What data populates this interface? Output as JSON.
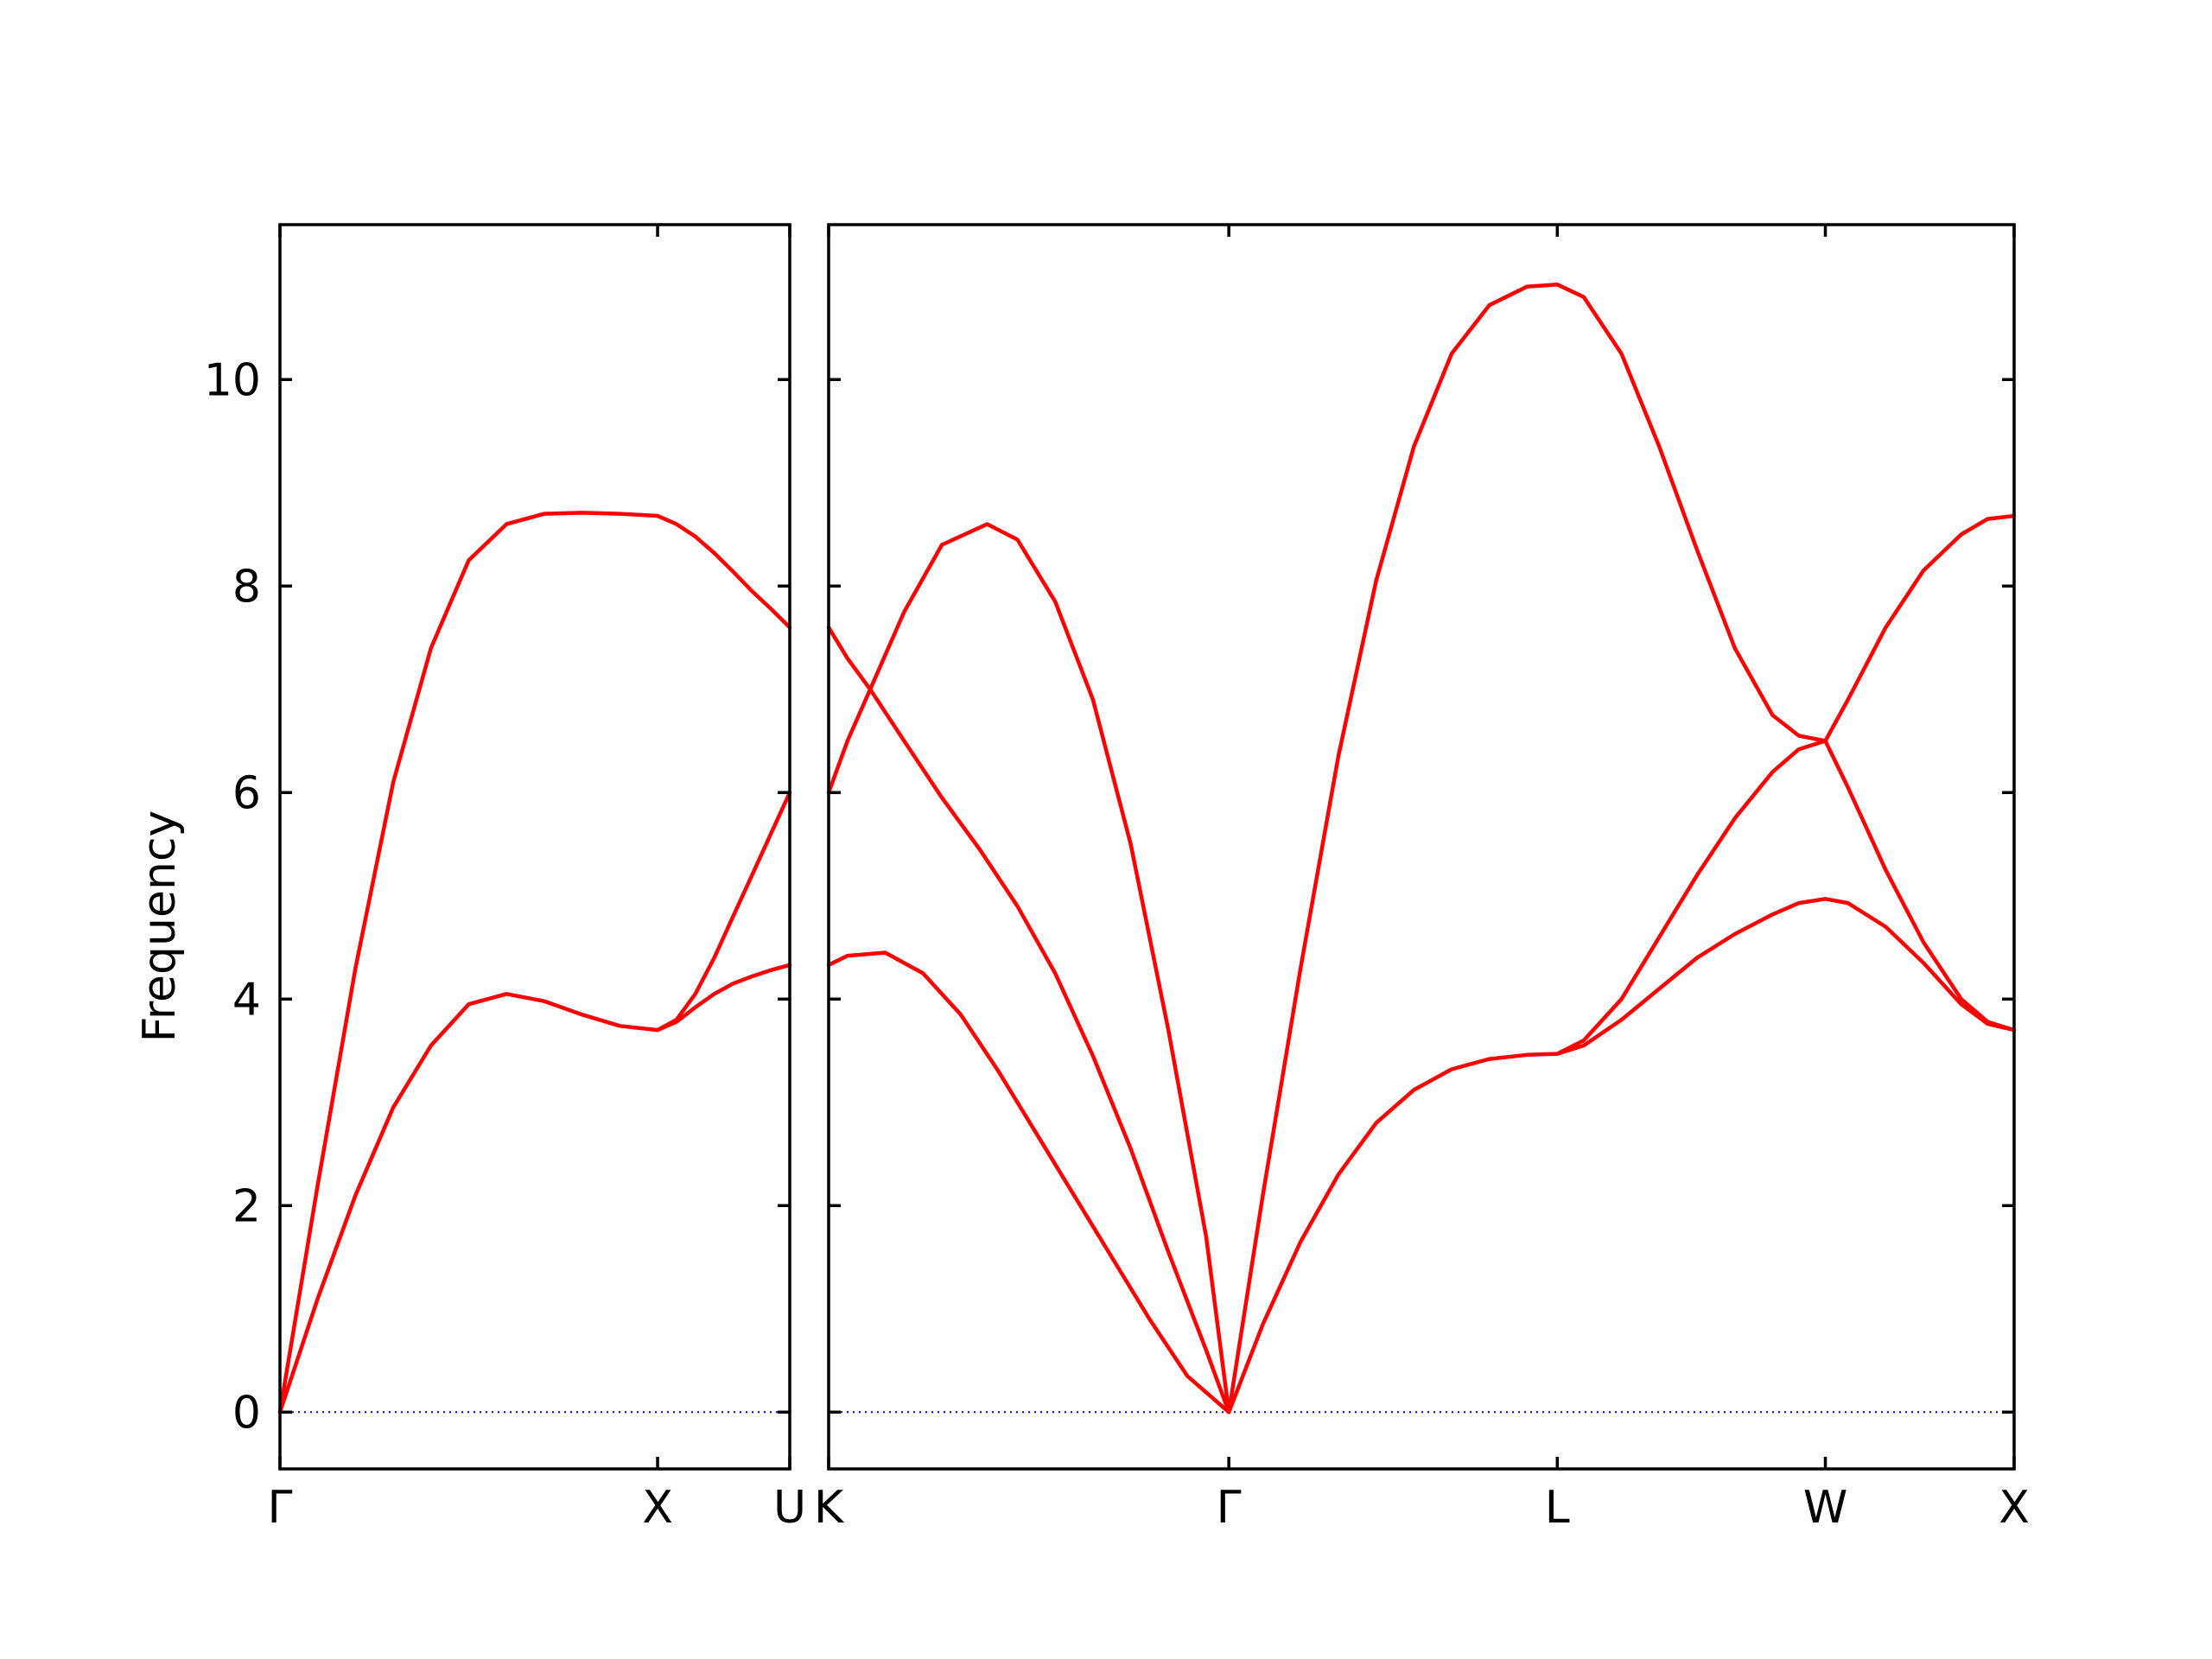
{
  "chart_data": {
    "type": "line",
    "title": "",
    "ylabel": "Frequency",
    "ylim": [
      -0.55,
      11.5
    ],
    "yticks": [
      0,
      2,
      4,
      6,
      8,
      10
    ],
    "ytick_labels": [
      "0",
      "2",
      "4",
      "6",
      "8",
      "10"
    ],
    "grid": false,
    "legend": "none",
    "colors": {
      "bands": "#ff0000",
      "zero_line": "#0000cc",
      "axes": "#000000"
    },
    "panels": [
      {
        "name": "gamma-x-u",
        "xlim": [
          0,
          1.35
        ],
        "xticks": [
          {
            "x": 0,
            "label": "Γ"
          },
          {
            "x": 1.0,
            "label": "X"
          },
          {
            "x": 1.35,
            "label": "U"
          }
        ],
        "series": [
          {
            "x": [
              0,
              0.1,
              0.2,
              0.3,
              0.4,
              0.5,
              0.6,
              0.7,
              0.8,
              0.9,
              1.0,
              1.05,
              1.1,
              1.15,
              1.2,
              1.25,
              1.3,
              1.35
            ],
            "y": [
              0,
              2.2,
              4.3,
              6.1,
              7.4,
              8.25,
              8.6,
              8.7,
              8.71,
              8.7,
              8.68,
              8.6,
              8.48,
              8.32,
              8.14,
              7.95,
              7.78,
              7.6
            ]
          },
          {
            "x": [
              0,
              0.1,
              0.2,
              0.3,
              0.4,
              0.5,
              0.6,
              0.7,
              0.8,
              0.9,
              1.0,
              1.05,
              1.1,
              1.15,
              1.2,
              1.25,
              1.3,
              1.35
            ],
            "y": [
              0,
              1.1,
              2.1,
              2.95,
              3.55,
              3.95,
              4.05,
              3.98,
              3.85,
              3.74,
              3.7,
              3.78,
              3.92,
              4.05,
              4.15,
              4.22,
              4.28,
              4.33
            ]
          },
          {
            "x": [
              1.0,
              1.05,
              1.1,
              1.15,
              1.2,
              1.25,
              1.3,
              1.35
            ],
            "y": [
              3.7,
              3.8,
              4.05,
              4.4,
              4.8,
              5.2,
              5.6,
              6.0
            ]
          }
        ]
      },
      {
        "name": "k-gamma-l-w-x",
        "xlim": [
          0,
          3.14
        ],
        "xticks": [
          {
            "x": 0,
            "label": "K"
          },
          {
            "x": 1.06,
            "label": "Γ"
          },
          {
            "x": 1.93,
            "label": "L"
          },
          {
            "x": 2.64,
            "label": "W"
          },
          {
            "x": 3.14,
            "label": "X"
          }
        ],
        "series": [
          {
            "x": [
              0,
              0.05,
              0.11,
              0.2,
              0.3,
              0.42,
              0.5,
              0.6,
              0.7,
              0.8,
              0.9,
              1.0,
              1.06
            ],
            "y": [
              6.0,
              6.5,
              7.0,
              7.75,
              8.4,
              8.6,
              8.45,
              7.85,
              6.9,
              5.5,
              3.7,
              1.7,
              0
            ]
          },
          {
            "x": [
              0,
              0.05,
              0.11,
              0.2,
              0.3,
              0.4,
              0.5,
              0.6,
              0.7,
              0.8,
              0.9,
              1.0,
              1.06
            ],
            "y": [
              7.6,
              7.3,
              7.0,
              6.5,
              5.95,
              5.45,
              4.9,
              4.25,
              3.45,
              2.55,
              1.55,
              0.6,
              0
            ]
          },
          {
            "x": [
              0,
              0.05,
              0.15,
              0.25,
              0.35,
              0.45,
              0.55,
              0.65,
              0.75,
              0.85,
              0.95,
              1.06
            ],
            "y": [
              4.33,
              4.42,
              4.45,
              4.25,
              3.85,
              3.3,
              2.7,
              2.1,
              1.5,
              0.9,
              0.35,
              0
            ]
          },
          {
            "x": [
              1.06,
              1.15,
              1.25,
              1.35,
              1.45,
              1.55,
              1.65,
              1.75,
              1.85,
              1.93,
              2.0,
              2.1,
              2.2,
              2.3,
              2.4,
              2.5,
              2.57,
              2.64,
              2.7,
              2.8,
              2.9,
              3.0,
              3.07,
              3.14
            ],
            "y": [
              0,
              2.1,
              4.3,
              6.35,
              8.05,
              9.35,
              10.25,
              10.72,
              10.9,
              10.92,
              10.8,
              10.25,
              9.35,
              8.35,
              7.4,
              6.75,
              6.55,
              6.5,
              6.9,
              7.6,
              8.15,
              8.5,
              8.65,
              8.68
            ]
          },
          {
            "x": [
              1.06,
              1.15,
              1.25,
              1.35,
              1.45,
              1.55,
              1.65,
              1.75,
              1.85,
              1.93,
              2.0,
              2.1,
              2.2,
              2.3,
              2.4,
              2.5,
              2.57,
              2.64
            ],
            "y": [
              0,
              0.85,
              1.65,
              2.3,
              2.8,
              3.12,
              3.32,
              3.42,
              3.46,
              3.47,
              3.6,
              4.0,
              4.6,
              5.2,
              5.75,
              6.2,
              6.42,
              6.5
            ]
          },
          {
            "x": [
              1.93,
              2.0,
              2.1,
              2.2,
              2.3,
              2.4,
              2.5,
              2.57,
              2.64,
              2.7,
              2.8,
              2.9,
              3.0,
              3.07,
              3.14
            ],
            "y": [
              3.47,
              3.55,
              3.8,
              4.1,
              4.4,
              4.63,
              4.82,
              4.93,
              4.97,
              4.93,
              4.7,
              4.35,
              3.95,
              3.76,
              3.7
            ]
          },
          {
            "x": [
              2.64,
              2.7,
              2.8,
              2.9,
              3.0,
              3.07,
              3.14
            ],
            "y": [
              6.5,
              6.05,
              5.25,
              4.55,
              4.0,
              3.78,
              3.7
            ]
          }
        ]
      }
    ]
  }
}
